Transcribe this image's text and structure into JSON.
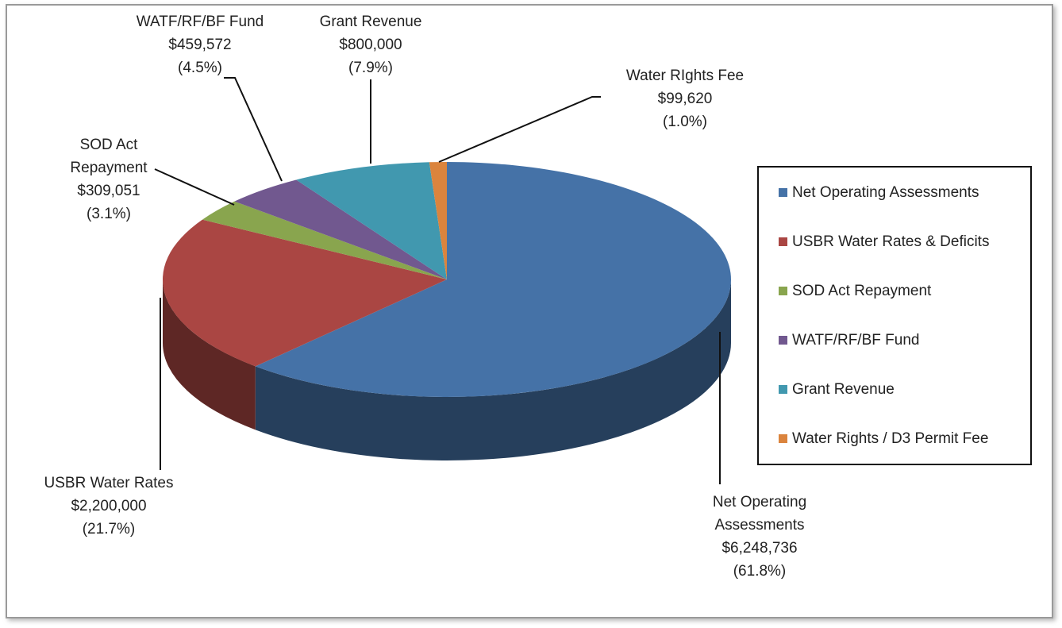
{
  "chart_data": {
    "type": "pie",
    "style": "3d",
    "categories": [
      "Net Operating Assessments",
      "USBR Water Rates & Deficits",
      "SOD Act Repayment",
      "WATF/RF/BF Fund",
      "Grant Revenue",
      "Water Rights / D3 Permit Fee"
    ],
    "values": [
      6248736,
      2200000,
      309051,
      459572,
      800000,
      99620
    ],
    "value_labels": [
      "$6,248,736",
      "$2,200,000",
      "$309,051",
      "$459,572",
      "$800,000",
      "$99,620"
    ],
    "percent_labels": [
      "(61.8%)",
      "(21.7%)",
      "(3.1%)",
      "(4.5%)",
      "(7.9%)",
      "(1.0%)"
    ],
    "callout_labels": [
      [
        "Net Operating",
        "Assessments"
      ],
      [
        "USBR Water Rates"
      ],
      [
        "SOD Act",
        "Repayment"
      ],
      [
        "WATF/RF/BF Fund"
      ],
      [
        "Grant Revenue"
      ],
      [
        "Water RIghts Fee"
      ]
    ],
    "colors": [
      "#4572a7",
      "#aa4643",
      "#89a54e",
      "#71588f",
      "#4198af",
      "#db843d"
    ],
    "legend": "right"
  }
}
